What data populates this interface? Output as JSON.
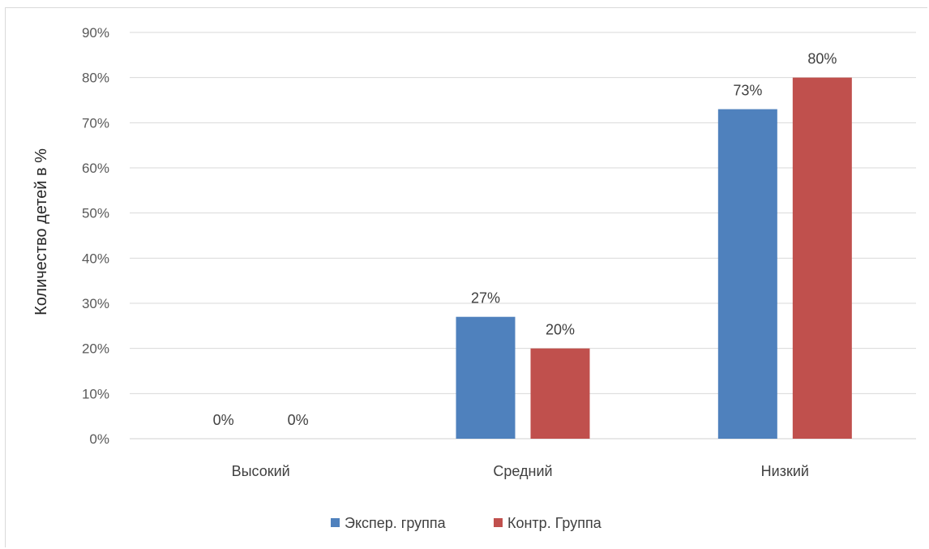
{
  "chart_data": {
    "type": "bar",
    "title": "",
    "xlabel": "",
    "ylabel": "Количество детей в %",
    "categories": [
      "Высокий",
      "Средний",
      "Низкий"
    ],
    "series": [
      {
        "name": "Экспер. группа",
        "values": [
          0,
          27,
          73
        ],
        "labels": [
          "0%",
          "27%",
          "73%"
        ],
        "color": "#4f81bd"
      },
      {
        "name": "Контр. Группа",
        "values": [
          0,
          20,
          80
        ],
        "labels": [
          "0%",
          "20%",
          "80%"
        ],
        "color": "#c0504d"
      }
    ],
    "ylim": [
      0,
      90
    ],
    "ytick_labels": [
      "0%",
      "10%",
      "20%",
      "30%",
      "40%",
      "50%",
      "60%",
      "70%",
      "80%",
      "90%"
    ],
    "grid": true,
    "legend": "bottom"
  }
}
